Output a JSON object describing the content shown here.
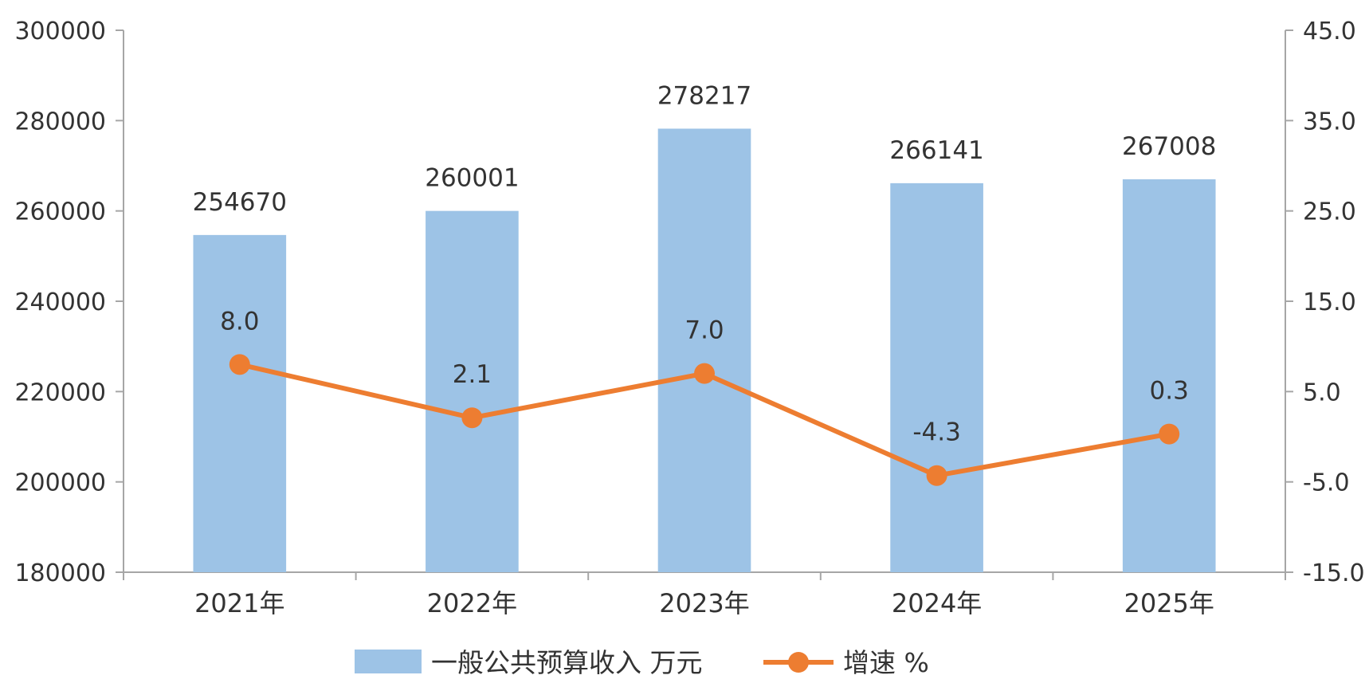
{
  "chart_data": {
    "type": "bar",
    "categories": [
      "2021年",
      "2022年",
      "2023年",
      "2024年",
      "2025年"
    ],
    "series": [
      {
        "name": "一般公共预算收入 万元",
        "type": "bar",
        "axis": "left",
        "color": "#9DC3E6",
        "values": [
          254670,
          260001,
          278217,
          266141,
          267008
        ],
        "labels": [
          "254670",
          "260001",
          "278217",
          "266141",
          "267008"
        ]
      },
      {
        "name": "增速 %",
        "type": "line",
        "axis": "right",
        "color": "#ED7D31",
        "values": [
          8.0,
          2.1,
          7.0,
          -4.3,
          0.3
        ],
        "labels": [
          "8.0",
          "2.1",
          "7.0",
          "-4.3",
          "0.3"
        ]
      }
    ],
    "y_left": {
      "ylim": [
        180000,
        300000
      ],
      "ticks": [
        "180000",
        "200000",
        "220000",
        "240000",
        "260000",
        "280000",
        "300000"
      ]
    },
    "y_right": {
      "ylim": [
        -15,
        45
      ],
      "ticks": [
        "-15.0",
        "-5.0",
        "5.0",
        "15.0",
        "25.0",
        "35.0",
        "45.0"
      ]
    },
    "grid": false,
    "legend_position": "bottom"
  }
}
